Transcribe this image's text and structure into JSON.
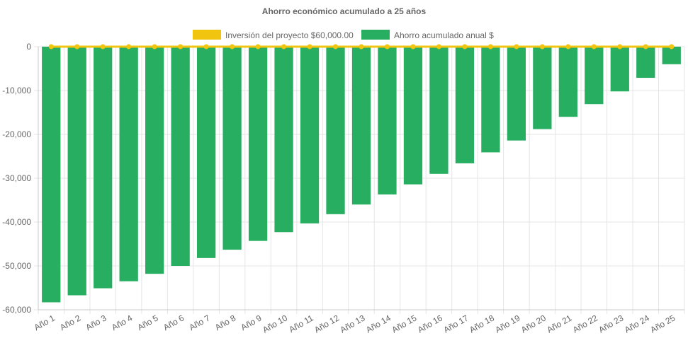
{
  "chart_data": {
    "type": "bar",
    "title": "Ahorro económico acumulado a 25 años",
    "categories": [
      "Año 1",
      "Año 2",
      "Año 3",
      "Año 4",
      "Año 5",
      "Año 6",
      "Año 7",
      "Año 8",
      "Año 9",
      "Año 10",
      "Año 11",
      "Año 12",
      "Año 13",
      "Año 14",
      "Año 15",
      "Año 16",
      "Año 17",
      "Año 18",
      "Año 19",
      "Año 20",
      "Año 21",
      "Año 22",
      "Año 23",
      "Año 24",
      "Año 25"
    ],
    "series": [
      {
        "name": "Inversión del proyecto $60,000.00",
        "type": "line",
        "color": "#f1c40f",
        "values": [
          0,
          0,
          0,
          0,
          0,
          0,
          0,
          0,
          0,
          0,
          0,
          0,
          0,
          0,
          0,
          0,
          0,
          0,
          0,
          0,
          0,
          0,
          0,
          0,
          0
        ]
      },
      {
        "name": "Ahorro acumulado anual $",
        "type": "bar",
        "color": "#27ae60",
        "values": [
          -58300,
          -56700,
          -55100,
          -53500,
          -51800,
          -50000,
          -48200,
          -46300,
          -44300,
          -42300,
          -40300,
          -38200,
          -36000,
          -33700,
          -31400,
          -29000,
          -26600,
          -24100,
          -21400,
          -18800,
          -16000,
          -13100,
          -10200,
          -7100,
          -4000
        ]
      }
    ],
    "ylim": [
      -60000,
      0
    ],
    "yticks": [
      "0",
      "-10,000",
      "-20,000",
      "-30,000",
      "-40,000",
      "-50,000",
      "-60,000"
    ],
    "ytick_values": [
      0,
      -10000,
      -20000,
      -30000,
      -40000,
      -50000,
      -60000
    ],
    "grid": true,
    "legend_position": "top"
  }
}
